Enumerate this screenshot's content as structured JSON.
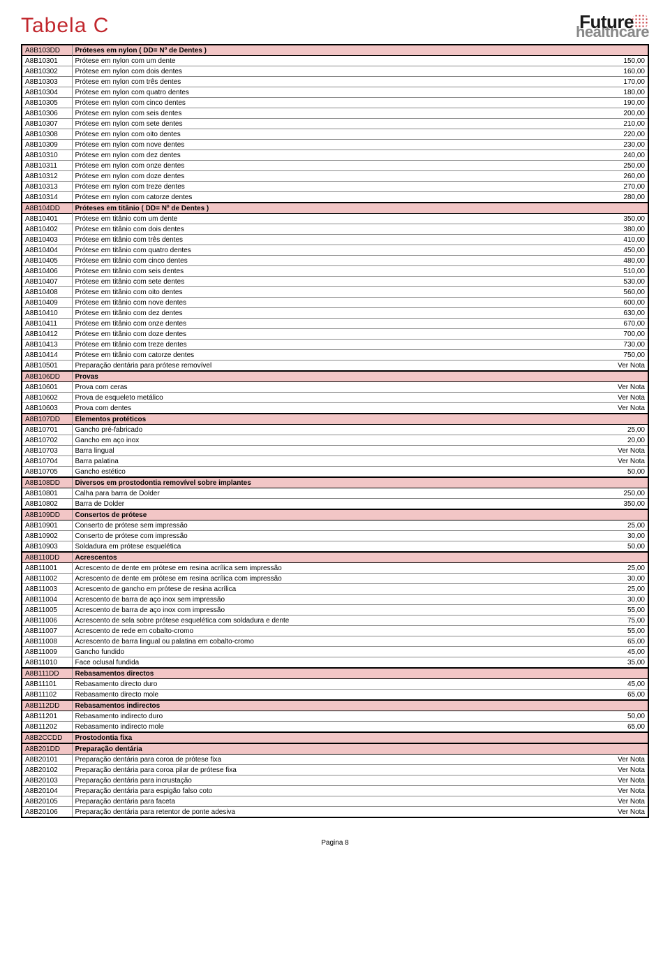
{
  "title": "Tabela C",
  "logo_top": "Future",
  "logo_bottom": "healthcare",
  "footer": "Pagina 8",
  "colors": {
    "title": "#c1272d",
    "section_bg": "#f2c6c6",
    "border": "#000000",
    "row_border": "#888888"
  },
  "fonts": {
    "title_size": 30,
    "row_size": 10
  },
  "sections": [
    {
      "code": "A8B103DD",
      "label": "Próteses em nylon ( DD= Nº de Dentes )",
      "heavy": true,
      "rows": [
        {
          "code": "A8B10301",
          "desc": "Prótese em nylon com um dente",
          "price": "150,00"
        },
        {
          "code": "A8B10302",
          "desc": "Prótese em nylon com dois dentes",
          "price": "160,00"
        },
        {
          "code": "A8B10303",
          "desc": "Prótese em nylon com três dentes",
          "price": "170,00"
        },
        {
          "code": "A8B10304",
          "desc": "Prótese em nylon com quatro dentes",
          "price": "180,00"
        },
        {
          "code": "A8B10305",
          "desc": "Prótese em nylon com cinco dentes",
          "price": "190,00"
        },
        {
          "code": "A8B10306",
          "desc": "Prótese em nylon com seis dentes",
          "price": "200,00"
        },
        {
          "code": "A8B10307",
          "desc": "Prótese em nylon com sete dentes",
          "price": "210,00"
        },
        {
          "code": "A8B10308",
          "desc": "Prótese em nylon com oito dentes",
          "price": "220,00"
        },
        {
          "code": "A8B10309",
          "desc": "Prótese em nylon com nove dentes",
          "price": "230,00"
        },
        {
          "code": "A8B10310",
          "desc": "Prótese em nylon com dez dentes",
          "price": "240,00"
        },
        {
          "code": "A8B10311",
          "desc": "Prótese em nylon com onze dentes",
          "price": "250,00"
        },
        {
          "code": "A8B10312",
          "desc": "Prótese em nylon com doze dentes",
          "price": "260,00"
        },
        {
          "code": "A8B10313",
          "desc": "Prótese em nylon com treze dentes",
          "price": "270,00"
        },
        {
          "code": "A8B10314",
          "desc": "Prótese em nylon com catorze dentes",
          "price": "280,00"
        }
      ]
    },
    {
      "code": "A8B104DD",
      "label": "Próteses em titânio ( DD= Nº de Dentes )",
      "heavy": false,
      "rows": [
        {
          "code": "A8B10401",
          "desc": "Prótese em titânio com um dente",
          "price": "350,00"
        },
        {
          "code": "A8B10402",
          "desc": "Prótese em titânio com dois dentes",
          "price": "380,00"
        },
        {
          "code": "A8B10403",
          "desc": "Prótese em titânio com três dentes",
          "price": "410,00"
        },
        {
          "code": "A8B10404",
          "desc": "Prótese em titânio com quatro dentes",
          "price": "450,00"
        },
        {
          "code": "A8B10405",
          "desc": "Prótese em titânio com cinco dentes",
          "price": "480,00"
        },
        {
          "code": "A8B10406",
          "desc": "Prótese em titânio com seis dentes",
          "price": "510,00"
        },
        {
          "code": "A8B10407",
          "desc": "Prótese em titânio com sete dentes",
          "price": "530,00"
        },
        {
          "code": "A8B10408",
          "desc": "Prótese em titânio com oito dentes",
          "price": "560,00"
        },
        {
          "code": "A8B10409",
          "desc": "Prótese em titânio com nove dentes",
          "price": "600,00"
        },
        {
          "code": "A8B10410",
          "desc": "Prótese em titânio com dez dentes",
          "price": "630,00"
        },
        {
          "code": "A8B10411",
          "desc": "Prótese em titânio com onze dentes",
          "price": "670,00"
        },
        {
          "code": "A8B10412",
          "desc": "Prótese em titânio com doze dentes",
          "price": "700,00"
        },
        {
          "code": "A8B10413",
          "desc": "Prótese em titânio com treze dentes",
          "price": "730,00"
        },
        {
          "code": "A8B10414",
          "desc": "Prótese em titânio com catorze dentes",
          "price": "750,00"
        },
        {
          "code": "A8B10501",
          "desc": "Preparação dentária para prótese removível",
          "price": "Ver Nota"
        }
      ]
    },
    {
      "code": "A8B106DD",
      "label": "Provas",
      "heavy": false,
      "rows": [
        {
          "code": "A8B10601",
          "desc": "Prova com ceras",
          "price": "Ver Nota"
        },
        {
          "code": "A8B10602",
          "desc": "Prova de esqueleto metálico",
          "price": "Ver Nota"
        },
        {
          "code": "A8B10603",
          "desc": "Prova com dentes",
          "price": "Ver Nota"
        }
      ]
    },
    {
      "code": "A8B107DD",
      "label": "Elementos protéticos",
      "heavy": false,
      "rows": [
        {
          "code": "A8B10701",
          "desc": "Gancho pré-fabricado",
          "price": "25,00"
        },
        {
          "code": "A8B10702",
          "desc": "Gancho em aço inox",
          "price": "20,00"
        },
        {
          "code": "A8B10703",
          "desc": "Barra lingual",
          "price": "Ver Nota"
        },
        {
          "code": "A8B10704",
          "desc": "Barra palatina",
          "price": "Ver Nota"
        },
        {
          "code": "A8B10705",
          "desc": "Gancho estético",
          "price": "50,00"
        }
      ]
    },
    {
      "code": "A8B108DD",
      "label": "Diversos em prostodontia removível sobre implantes",
      "heavy": false,
      "rows": [
        {
          "code": "A8B10801",
          "desc": "Calha para barra de Dolder",
          "price": "250,00"
        },
        {
          "code": "A8B10802",
          "desc": "Barra de Dolder",
          "price": "350,00"
        }
      ]
    },
    {
      "code": "A8B109DD",
      "label": "Consertos de prótese",
      "heavy": false,
      "rows": [
        {
          "code": "A8B10901",
          "desc": "Conserto de prótese sem impressão",
          "price": "25,00"
        },
        {
          "code": "A8B10902",
          "desc": "Conserto de prótese com impressão",
          "price": "30,00"
        },
        {
          "code": "A8B10903",
          "desc": "Soldadura em prótese esquelética",
          "price": "50,00"
        }
      ]
    },
    {
      "code": "A8B110DD",
      "label": "Acrescentos",
      "heavy": false,
      "rows": [
        {
          "code": "A8B11001",
          "desc": "Acrescento de dente em prótese em resina acrílica sem impressão",
          "price": "25,00"
        },
        {
          "code": "A8B11002",
          "desc": "Acrescento de dente em prótese em resina acrílica com impressão",
          "price": "30,00"
        },
        {
          "code": "A8B11003",
          "desc": "Acrescento de gancho em prótese de resina acrílica",
          "price": "25,00"
        },
        {
          "code": "A8B11004",
          "desc": "Acrescento de barra de aço inox sem impressão",
          "price": "30,00"
        },
        {
          "code": "A8B11005",
          "desc": "Acrescento de barra de aço inox com impressão",
          "price": "55,00"
        },
        {
          "code": "A8B11006",
          "desc": "Acrescento de sela sobre prótese esquelética com soldadura e dente",
          "price": "75,00"
        },
        {
          "code": "A8B11007",
          "desc": "Acrescento de rede em cobalto-cromo",
          "price": "55,00"
        },
        {
          "code": "A8B11008",
          "desc": "Acrescento de barra lingual ou palatina em cobalto-cromo",
          "price": "65,00"
        },
        {
          "code": "A8B11009",
          "desc": "Gancho fundido",
          "price": "45,00"
        },
        {
          "code": "A8B11010",
          "desc": "Face oclusal fundida",
          "price": "35,00"
        }
      ]
    },
    {
      "code": "A8B111DD",
      "label": "Rebasamentos directos",
      "heavy": false,
      "rows": [
        {
          "code": "A8B11101",
          "desc": "Rebasamento directo duro",
          "price": "45,00"
        },
        {
          "code": "A8B11102",
          "desc": "Rebasamento directo mole",
          "price": "65,00"
        }
      ]
    },
    {
      "code": "A8B112DD",
      "label": "Rebasamentos indirectos",
      "heavy": false,
      "rows": [
        {
          "code": "A8B11201",
          "desc": "Rebasamento indirecto duro",
          "price": "50,00"
        },
        {
          "code": "A8B11202",
          "desc": "Rebasamento indirecto mole",
          "price": "65,00"
        }
      ]
    },
    {
      "code": "A8B2CCDD",
      "label": "Prostodontia fixa",
      "heavy": true,
      "rows": []
    },
    {
      "code": "A8B201DD",
      "label": "Preparação dentária",
      "heavy": false,
      "rows": [
        {
          "code": "A8B20101",
          "desc": "Preparação dentária para coroa de prótese fixa",
          "price": "Ver Nota"
        },
        {
          "code": "A8B20102",
          "desc": "Preparação dentária para coroa pilar de prótese fixa",
          "price": "Ver Nota"
        },
        {
          "code": "A8B20103",
          "desc": "Preparação dentária para incrustação",
          "price": "Ver Nota"
        },
        {
          "code": "A8B20104",
          "desc": "Preparação dentária para espigão falso coto",
          "price": "Ver Nota"
        },
        {
          "code": "A8B20105",
          "desc": "Preparação dentária para faceta",
          "price": "Ver Nota"
        },
        {
          "code": "A8B20106",
          "desc": "Preparação dentária para retentor de ponte adesiva",
          "price": "Ver Nota"
        }
      ]
    }
  ]
}
